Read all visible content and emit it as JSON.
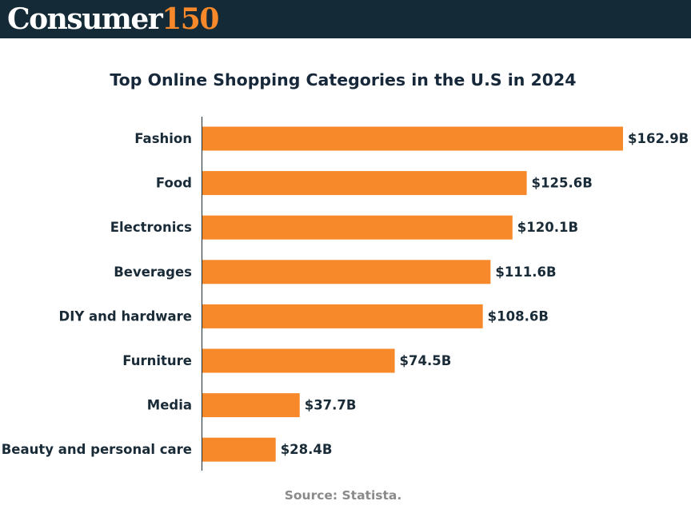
{
  "header": {
    "logo_word": "Consumer",
    "logo_number": "150",
    "background_color": "#142a36",
    "accent_color": "#f7892a"
  },
  "source": "Source: Statista.",
  "chart_data": {
    "type": "bar",
    "orientation": "horizontal",
    "title": "Top Online Shopping Categories in the U.S in 2024",
    "xlabel": "",
    "ylabel": "",
    "unit": "billion USD",
    "bar_color": "#f7892a",
    "grid": false,
    "categories": [
      "Fashion",
      "Food",
      "Electronics",
      "Beverages",
      "DIY and hardware",
      "Furniture",
      "Media",
      "Beauty and personal care"
    ],
    "values": [
      162.9,
      125.6,
      120.1,
      111.6,
      108.6,
      74.5,
      37.7,
      28.4
    ],
    "value_labels": [
      "$162.9B",
      "$125.6B",
      "$120.1B",
      "$111.6B",
      "$108.6B",
      "$74.5B",
      "$37.7B",
      "$28.4B"
    ]
  }
}
